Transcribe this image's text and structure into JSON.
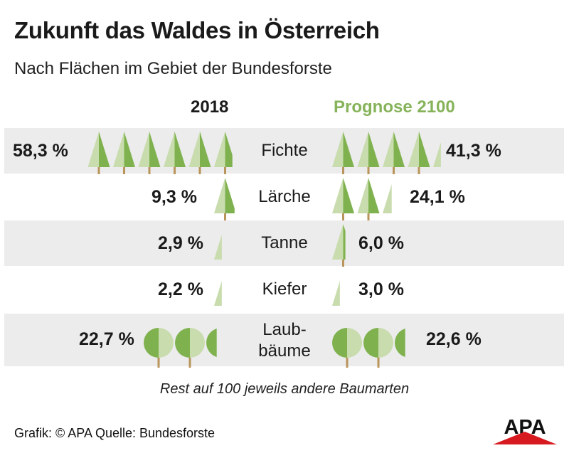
{
  "header": {
    "title": "Zukunft das Waldes in Österreich",
    "subtitle": "Nach Flächen im Gebiet der Bundesforste"
  },
  "columns": {
    "left": "2018",
    "right": "Prognose 2100"
  },
  "colors": {
    "tree_light": "#c8dcae",
    "tree_dark": "#7fb24f",
    "trunk": "#b9955b",
    "row_bg": "#ececec",
    "accent_green": "#86b35a",
    "logo_red": "#d71920"
  },
  "chart_data": {
    "type": "pictograph",
    "unit": "%",
    "categories": [
      "Fichte",
      "Lärche",
      "Tanne",
      "Kiefer",
      "Laubbäume"
    ],
    "series": [
      {
        "name": "2018",
        "values": [
          58.3,
          9.3,
          2.9,
          2.2,
          22.7
        ],
        "labels": [
          "58,3 %",
          "9,3 %",
          "2,9 %",
          "2,2 %",
          "22,7 %"
        ]
      },
      {
        "name": "Prognose 2100",
        "values": [
          41.3,
          24.1,
          6.0,
          3.0,
          22.6
        ],
        "labels": [
          "41,3 %",
          "24,1 %",
          "6,0 %",
          "3,0 %",
          "22,6 %"
        ]
      }
    ],
    "icon_types": [
      "conifer",
      "conifer",
      "conifer",
      "conifer",
      "deciduous"
    ],
    "species_labels": [
      "Fichte",
      "Lärche",
      "Tanne",
      "Kiefer",
      "Laub-\nbäume"
    ]
  },
  "footer": {
    "note": "Rest auf 100 jeweils andere Baumarten",
    "credit": "Grafik: © APA Quelle: Bundesforste",
    "logo_text": "APA"
  }
}
